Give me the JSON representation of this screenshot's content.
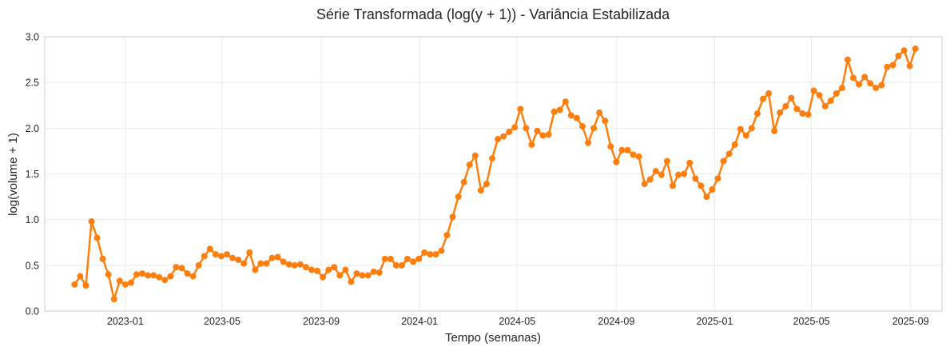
{
  "chart_data": {
    "type": "line",
    "title": "Série Transformada (log(y + 1)) - Variância Estabilizada",
    "xlabel": "Tempo (semanas)",
    "ylabel": "log(volume + 1)",
    "ylim": [
      0,
      3.0
    ],
    "xlim": [
      "2022-09-23",
      "2025-10-10"
    ],
    "grid": true,
    "legend": "none",
    "colors": {
      "series": "#ff7f0e",
      "grid": "#ebebeb",
      "spine": "#cccccc"
    },
    "x_ticks": [
      "2023-01",
      "2023-05",
      "2023-09",
      "2024-01",
      "2024-05",
      "2024-09",
      "2025-01",
      "2025-05",
      "2025-09"
    ],
    "y_ticks": [
      "0.0",
      "0.5",
      "1.0",
      "1.5",
      "2.0",
      "2.5",
      "3.0"
    ],
    "x": [
      "2022-10-30",
      "2022-11-06",
      "2022-11-13",
      "2022-11-20",
      "2022-11-27",
      "2022-12-04",
      "2022-12-11",
      "2022-12-18",
      "2022-12-25",
      "2023-01-01",
      "2023-01-08",
      "2023-01-15",
      "2023-01-22",
      "2023-01-29",
      "2023-02-05",
      "2023-02-12",
      "2023-02-19",
      "2023-02-26",
      "2023-03-05",
      "2023-03-12",
      "2023-03-19",
      "2023-03-26",
      "2023-04-02",
      "2023-04-09",
      "2023-04-16",
      "2023-04-23",
      "2023-04-30",
      "2023-05-07",
      "2023-05-14",
      "2023-05-21",
      "2023-05-28",
      "2023-06-04",
      "2023-06-11",
      "2023-06-18",
      "2023-06-25",
      "2023-07-02",
      "2023-07-09",
      "2023-07-16",
      "2023-07-23",
      "2023-07-30",
      "2023-08-06",
      "2023-08-13",
      "2023-08-20",
      "2023-08-27",
      "2023-09-03",
      "2023-09-10",
      "2023-09-17",
      "2023-09-24",
      "2023-10-01",
      "2023-10-08",
      "2023-10-15",
      "2023-10-22",
      "2023-10-29",
      "2023-11-05",
      "2023-11-12",
      "2023-11-19",
      "2023-11-26",
      "2023-12-03",
      "2023-12-10",
      "2023-12-17",
      "2023-12-24",
      "2023-12-31",
      "2024-01-07",
      "2024-01-14",
      "2024-01-21",
      "2024-01-28",
      "2024-02-04",
      "2024-02-11",
      "2024-02-18",
      "2024-02-25",
      "2024-03-03",
      "2024-03-10",
      "2024-03-17",
      "2024-03-24",
      "2024-03-31",
      "2024-04-07",
      "2024-04-14",
      "2024-04-21",
      "2024-04-28",
      "2024-05-05",
      "2024-05-12",
      "2024-05-19",
      "2024-05-26",
      "2024-06-02",
      "2024-06-09",
      "2024-06-16",
      "2024-06-23",
      "2024-06-30",
      "2024-07-07",
      "2024-07-14",
      "2024-07-21",
      "2024-07-28",
      "2024-08-04",
      "2024-08-11",
      "2024-08-18",
      "2024-08-25",
      "2024-09-01",
      "2024-09-08",
      "2024-09-15",
      "2024-09-22",
      "2024-09-29",
      "2024-10-06",
      "2024-10-13",
      "2024-10-20",
      "2024-10-27",
      "2024-11-03",
      "2024-11-10",
      "2024-11-17",
      "2024-11-24",
      "2024-12-01",
      "2024-12-08",
      "2024-12-15",
      "2024-12-22",
      "2024-12-29",
      "2025-01-05",
      "2025-01-12",
      "2025-01-19",
      "2025-01-26",
      "2025-02-02",
      "2025-02-09",
      "2025-02-16",
      "2025-02-23",
      "2025-03-02",
      "2025-03-09",
      "2025-03-16",
      "2025-03-23",
      "2025-03-30",
      "2025-04-06",
      "2025-04-13",
      "2025-04-20",
      "2025-04-27",
      "2025-05-04",
      "2025-05-11",
      "2025-05-18",
      "2025-05-25",
      "2025-06-01",
      "2025-06-08",
      "2025-06-15",
      "2025-06-22",
      "2025-06-29",
      "2025-07-06",
      "2025-07-13",
      "2025-07-20",
      "2025-07-27",
      "2025-08-03",
      "2025-08-10",
      "2025-08-17",
      "2025-08-24",
      "2025-08-31",
      "2025-09-07"
    ],
    "values": [
      0.29,
      0.38,
      0.28,
      0.98,
      0.8,
      0.57,
      0.4,
      0.13,
      0.33,
      0.29,
      0.31,
      0.4,
      0.41,
      0.39,
      0.39,
      0.37,
      0.34,
      0.38,
      0.48,
      0.47,
      0.41,
      0.38,
      0.5,
      0.6,
      0.68,
      0.62,
      0.6,
      0.62,
      0.58,
      0.56,
      0.52,
      0.64,
      0.45,
      0.52,
      0.52,
      0.58,
      0.59,
      0.54,
      0.51,
      0.5,
      0.51,
      0.48,
      0.45,
      0.44,
      0.37,
      0.45,
      0.48,
      0.39,
      0.45,
      0.32,
      0.41,
      0.39,
      0.39,
      0.43,
      0.42,
      0.57,
      0.57,
      0.5,
      0.5,
      0.57,
      0.54,
      0.57,
      0.64,
      0.62,
      0.62,
      0.66,
      0.83,
      1.03,
      1.25,
      1.41,
      1.6,
      1.7,
      1.32,
      1.39,
      1.67,
      1.88,
      1.91,
      1.96,
      2.01,
      2.21,
      2.0,
      1.82,
      1.97,
      1.92,
      1.93,
      2.18,
      2.2,
      2.29,
      2.14,
      2.11,
      2.02,
      1.84,
      2.0,
      2.17,
      2.08,
      1.8,
      1.63,
      1.76,
      1.76,
      1.71,
      1.69,
      1.39,
      1.44,
      1.53,
      1.49,
      1.64,
      1.37,
      1.49,
      1.5,
      1.62,
      1.45,
      1.37,
      1.25,
      1.33,
      1.45,
      1.64,
      1.72,
      1.82,
      1.99,
      1.92,
      2.0,
      2.16,
      2.32,
      2.38,
      1.97,
      2.17,
      2.24,
      2.33,
      2.21,
      2.16,
      2.15,
      2.41,
      2.36,
      2.24,
      2.3,
      2.38,
      2.44,
      2.75,
      2.55,
      2.48,
      2.56,
      2.49,
      2.44,
      2.47,
      2.67,
      2.69,
      2.79,
      2.85,
      2.68,
      2.87
    ]
  }
}
